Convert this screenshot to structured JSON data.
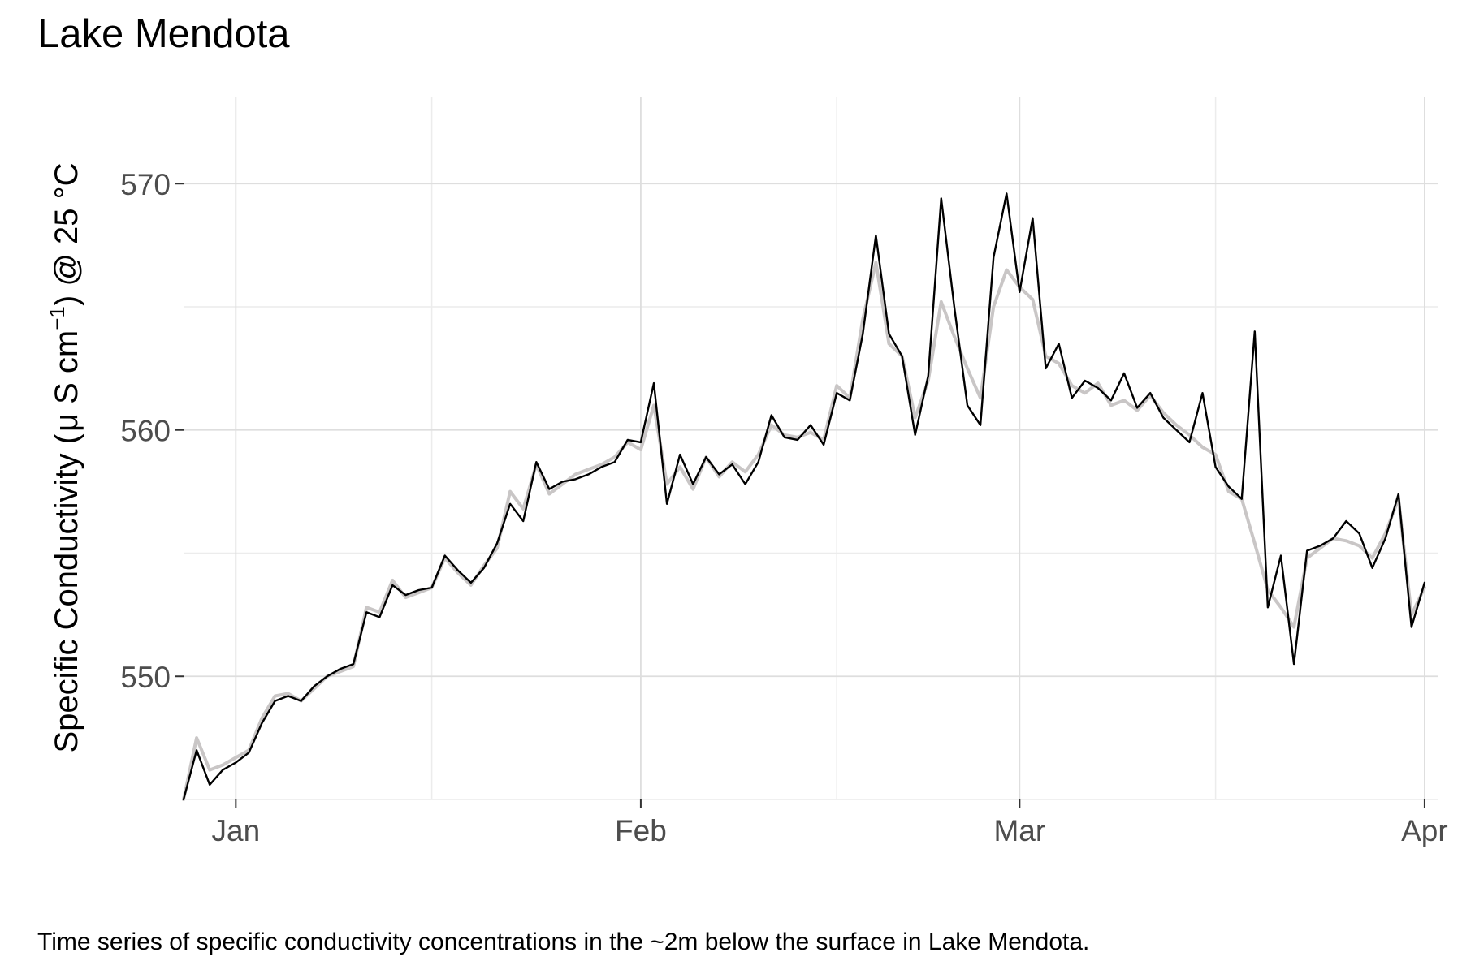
{
  "chart_data": {
    "type": "line",
    "title": "Lake Mendota",
    "caption": "Time series of specific conductivity concentrations in the ~2m below the surface in Lake Mendota.",
    "xlabel": "",
    "ylabel": {
      "prefix": "Specific Conductivity (",
      "mu": "μ",
      "units": " S cm",
      "exponent": "−1",
      "suffix": ") @ 25 °C"
    },
    "x_range": [
      "2023-12-28",
      "2024-04-02"
    ],
    "ylim": [
      545,
      573.5
    ],
    "x_ticks": [
      {
        "date": "2024-01-01",
        "label": "Jan"
      },
      {
        "date": "2024-02-01",
        "label": "Feb"
      },
      {
        "date": "2024-03-01",
        "label": "Mar"
      },
      {
        "date": "2024-04-01",
        "label": "Apr"
      }
    ],
    "x_minor_ticks": [
      "2024-01-16",
      "2024-02-16",
      "2024-03-16"
    ],
    "y_ticks": [
      550,
      560,
      570
    ],
    "y_minor_ticks": [
      545,
      555,
      565
    ],
    "grid": true,
    "legend": "none",
    "series": [
      {
        "style": "raw",
        "color": "#c9c6c6",
        "points": [
          [
            "2023-12-28",
            545
          ],
          [
            "2023-12-29",
            547.5
          ],
          [
            "2023-12-30",
            546.2
          ],
          [
            "2023-12-31",
            546.4
          ],
          [
            "2024-01-01",
            546.7
          ],
          [
            "2024-01-02",
            547.0
          ],
          [
            "2024-01-03",
            548.3
          ],
          [
            "2024-01-04",
            549.2
          ],
          [
            "2024-01-05",
            549.3
          ],
          [
            "2024-01-06",
            549.0
          ],
          [
            "2024-01-07",
            549.5
          ],
          [
            "2024-01-08",
            550.0
          ],
          [
            "2024-01-09",
            550.2
          ],
          [
            "2024-01-10",
            550.4
          ],
          [
            "2024-01-11",
            552.8
          ],
          [
            "2024-01-12",
            552.6
          ],
          [
            "2024-01-13",
            553.9
          ],
          [
            "2024-01-14",
            553.2
          ],
          [
            "2024-01-15",
            553.4
          ],
          [
            "2024-01-16",
            553.6
          ],
          [
            "2024-01-17",
            554.8
          ],
          [
            "2024-01-18",
            554.2
          ],
          [
            "2024-01-19",
            553.7
          ],
          [
            "2024-01-20",
            554.5
          ],
          [
            "2024-01-21",
            555.2
          ],
          [
            "2024-01-22",
            557.5
          ],
          [
            "2024-01-23",
            556.8
          ],
          [
            "2024-01-24",
            558.6
          ],
          [
            "2024-01-25",
            557.4
          ],
          [
            "2024-01-26",
            557.8
          ],
          [
            "2024-01-27",
            558.2
          ],
          [
            "2024-01-28",
            558.4
          ],
          [
            "2024-01-29",
            558.6
          ],
          [
            "2024-01-30",
            558.9
          ],
          [
            "2024-01-31",
            559.5
          ],
          [
            "2024-02-01",
            559.2
          ],
          [
            "2024-02-02",
            561.0
          ],
          [
            "2024-02-03",
            557.8
          ],
          [
            "2024-02-04",
            558.5
          ],
          [
            "2024-02-05",
            557.6
          ],
          [
            "2024-02-06",
            558.9
          ],
          [
            "2024-02-07",
            558.1
          ],
          [
            "2024-02-08",
            558.7
          ],
          [
            "2024-02-09",
            558.3
          ],
          [
            "2024-02-10",
            559.0
          ],
          [
            "2024-02-11",
            560.2
          ],
          [
            "2024-02-12",
            559.8
          ],
          [
            "2024-02-13",
            559.7
          ],
          [
            "2024-02-14",
            559.9
          ],
          [
            "2024-02-15",
            559.6
          ],
          [
            "2024-02-16",
            561.8
          ],
          [
            "2024-02-17",
            561.3
          ],
          [
            "2024-02-18",
            564.5
          ],
          [
            "2024-02-19",
            566.8
          ],
          [
            "2024-02-20",
            563.5
          ],
          [
            "2024-02-21",
            563.0
          ],
          [
            "2024-02-22",
            560.5
          ],
          [
            "2024-02-23",
            562.0
          ],
          [
            "2024-02-24",
            565.2
          ],
          [
            "2024-02-25",
            563.8
          ],
          [
            "2024-02-26",
            562.5
          ],
          [
            "2024-02-27",
            561.3
          ],
          [
            "2024-02-28",
            565.0
          ],
          [
            "2024-02-29",
            566.5
          ],
          [
            "2024-03-01",
            565.8
          ],
          [
            "2024-03-02",
            565.3
          ],
          [
            "2024-03-03",
            563.0
          ],
          [
            "2024-03-04",
            562.7
          ],
          [
            "2024-03-05",
            561.8
          ],
          [
            "2024-03-06",
            561.5
          ],
          [
            "2024-03-07",
            561.9
          ],
          [
            "2024-03-08",
            561.0
          ],
          [
            "2024-03-09",
            561.2
          ],
          [
            "2024-03-10",
            560.8
          ],
          [
            "2024-03-11",
            561.4
          ],
          [
            "2024-03-12",
            560.7
          ],
          [
            "2024-03-13",
            560.2
          ],
          [
            "2024-03-14",
            559.8
          ],
          [
            "2024-03-15",
            559.3
          ],
          [
            "2024-03-16",
            559.0
          ],
          [
            "2024-03-17",
            557.5
          ],
          [
            "2024-03-18",
            557.2
          ],
          [
            "2024-03-19",
            555.4
          ],
          [
            "2024-03-20",
            553.5
          ],
          [
            "2024-03-21",
            552.8
          ],
          [
            "2024-03-22",
            552.0
          ],
          [
            "2024-03-23",
            554.8
          ],
          [
            "2024-03-24",
            555.2
          ],
          [
            "2024-03-25",
            555.6
          ],
          [
            "2024-03-26",
            555.5
          ],
          [
            "2024-03-27",
            555.3
          ],
          [
            "2024-03-28",
            554.8
          ],
          [
            "2024-03-29",
            555.8
          ],
          [
            "2024-03-30",
            557.2
          ],
          [
            "2024-03-31",
            552.5
          ],
          [
            "2024-04-01",
            553.6
          ]
        ]
      },
      {
        "style": "smoothed",
        "color": "#000000",
        "points": [
          [
            "2023-12-28",
            545.0
          ],
          [
            "2023-12-29",
            547.0
          ],
          [
            "2023-12-30",
            545.6
          ],
          [
            "2023-12-31",
            546.2
          ],
          [
            "2024-01-01",
            546.5
          ],
          [
            "2024-01-02",
            546.9
          ],
          [
            "2024-01-03",
            548.1
          ],
          [
            "2024-01-04",
            549.0
          ],
          [
            "2024-01-05",
            549.2
          ],
          [
            "2024-01-06",
            549.0
          ],
          [
            "2024-01-07",
            549.6
          ],
          [
            "2024-01-08",
            550.0
          ],
          [
            "2024-01-09",
            550.3
          ],
          [
            "2024-01-10",
            550.5
          ],
          [
            "2024-01-11",
            552.6
          ],
          [
            "2024-01-12",
            552.4
          ],
          [
            "2024-01-13",
            553.7
          ],
          [
            "2024-01-14",
            553.3
          ],
          [
            "2024-01-15",
            553.5
          ],
          [
            "2024-01-16",
            553.6
          ],
          [
            "2024-01-17",
            554.9
          ],
          [
            "2024-01-18",
            554.3
          ],
          [
            "2024-01-19",
            553.8
          ],
          [
            "2024-01-20",
            554.4
          ],
          [
            "2024-01-21",
            555.4
          ],
          [
            "2024-01-22",
            557.0
          ],
          [
            "2024-01-23",
            556.3
          ],
          [
            "2024-01-24",
            558.7
          ],
          [
            "2024-01-25",
            557.6
          ],
          [
            "2024-01-26",
            557.9
          ],
          [
            "2024-01-27",
            558.0
          ],
          [
            "2024-01-28",
            558.2
          ],
          [
            "2024-01-29",
            558.5
          ],
          [
            "2024-01-30",
            558.7
          ],
          [
            "2024-01-31",
            559.6
          ],
          [
            "2024-02-01",
            559.5
          ],
          [
            "2024-02-02",
            561.9
          ],
          [
            "2024-02-03",
            557.0
          ],
          [
            "2024-02-04",
            559.0
          ],
          [
            "2024-02-05",
            557.8
          ],
          [
            "2024-02-06",
            558.9
          ],
          [
            "2024-02-07",
            558.2
          ],
          [
            "2024-02-08",
            558.6
          ],
          [
            "2024-02-09",
            557.8
          ],
          [
            "2024-02-10",
            558.7
          ],
          [
            "2024-02-11",
            560.6
          ],
          [
            "2024-02-12",
            559.7
          ],
          [
            "2024-02-13",
            559.6
          ],
          [
            "2024-02-14",
            560.2
          ],
          [
            "2024-02-15",
            559.4
          ],
          [
            "2024-02-16",
            561.5
          ],
          [
            "2024-02-17",
            561.2
          ],
          [
            "2024-02-18",
            563.9
          ],
          [
            "2024-02-19",
            567.9
          ],
          [
            "2024-02-20",
            563.9
          ],
          [
            "2024-02-21",
            563.0
          ],
          [
            "2024-02-22",
            559.8
          ],
          [
            "2024-02-23",
            562.2
          ],
          [
            "2024-02-24",
            569.4
          ],
          [
            "2024-02-25",
            565.0
          ],
          [
            "2024-02-26",
            561.0
          ],
          [
            "2024-02-27",
            560.2
          ],
          [
            "2024-02-28",
            567.0
          ],
          [
            "2024-02-29",
            569.6
          ],
          [
            "2024-03-01",
            565.6
          ],
          [
            "2024-03-02",
            568.6
          ],
          [
            "2024-03-03",
            562.5
          ],
          [
            "2024-03-04",
            563.5
          ],
          [
            "2024-03-05",
            561.3
          ],
          [
            "2024-03-06",
            562.0
          ],
          [
            "2024-03-07",
            561.7
          ],
          [
            "2024-03-08",
            561.2
          ],
          [
            "2024-03-09",
            562.3
          ],
          [
            "2024-03-10",
            560.9
          ],
          [
            "2024-03-11",
            561.5
          ],
          [
            "2024-03-12",
            560.5
          ],
          [
            "2024-03-13",
            560.0
          ],
          [
            "2024-03-14",
            559.5
          ],
          [
            "2024-03-15",
            561.5
          ],
          [
            "2024-03-16",
            558.5
          ],
          [
            "2024-03-17",
            557.7
          ],
          [
            "2024-03-18",
            557.2
          ],
          [
            "2024-03-19",
            564.0
          ],
          [
            "2024-03-20",
            552.8
          ],
          [
            "2024-03-21",
            554.9
          ],
          [
            "2024-03-22",
            550.5
          ],
          [
            "2024-03-23",
            555.1
          ],
          [
            "2024-03-24",
            555.3
          ],
          [
            "2024-03-25",
            555.6
          ],
          [
            "2024-03-26",
            556.3
          ],
          [
            "2024-03-27",
            555.8
          ],
          [
            "2024-03-28",
            554.4
          ],
          [
            "2024-03-29",
            555.6
          ],
          [
            "2024-03-30",
            557.4
          ],
          [
            "2024-03-31",
            552.0
          ],
          [
            "2024-04-01",
            553.8
          ]
        ]
      }
    ]
  }
}
